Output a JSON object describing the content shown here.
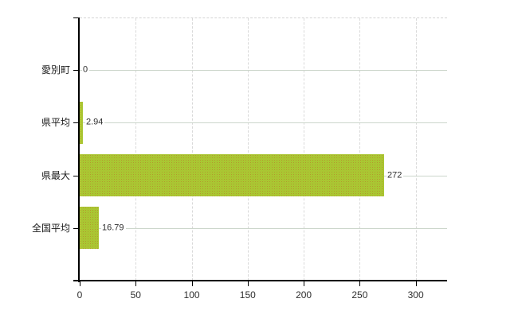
{
  "chart_data": {
    "type": "bar",
    "orientation": "horizontal",
    "title": "",
    "categories": [
      "愛別町",
      "県平均",
      "県最大",
      "全国平均"
    ],
    "values": [
      0,
      2.94,
      272,
      16.79
    ],
    "value_labels": [
      "0",
      "2.94",
      "272",
      "16.79"
    ],
    "x_ticks": [
      0,
      50,
      100,
      150,
      200,
      250,
      300
    ],
    "x_tick_labels": [
      "0",
      "50",
      "100",
      "150",
      "200",
      "250",
      "300"
    ],
    "xlim": [
      0,
      328
    ],
    "xlabel": "",
    "ylabel": "",
    "grid": true,
    "legend": false,
    "colors": {
      "background": "#ffffff",
      "bar_fill": "#a4cf32",
      "bar_texture_dot": "#bd8c2f",
      "vertical_grid": "#d9d9d9",
      "horizontal_grid": "#ccd6cb",
      "plot_top_border": "#d4d4d4",
      "axis": "#000000",
      "tick_label": "#2e2e2e",
      "category_label": "#1a1a1a",
      "value_label": "#2e2e2e"
    }
  }
}
